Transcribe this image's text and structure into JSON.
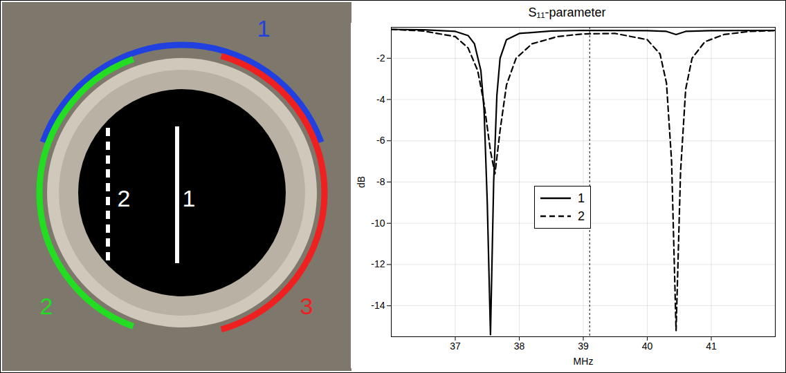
{
  "chart_data": {
    "type": "line",
    "title": "S₁₁-parameter",
    "x_label": "MHz",
    "y_label": "dB",
    "xlim": [
      36,
      42
    ],
    "xticks": [
      37,
      38,
      39,
      40,
      41
    ],
    "ylim": [
      -15.5,
      -0.5
    ],
    "yticks": [
      -2,
      -4,
      -6,
      -8,
      -10,
      -12,
      -14
    ],
    "grid": true,
    "legend": "center",
    "reference_line": 39.1,
    "series": [
      {
        "name": "1",
        "color": "#000000",
        "line_style": "solid",
        "x": [
          36.0,
          36.5,
          37.0,
          37.2,
          37.3,
          37.4,
          37.45,
          37.5,
          37.55,
          37.6,
          37.65,
          37.7,
          37.8,
          38.0,
          38.5,
          39.0,
          40.0,
          40.3,
          40.45,
          40.6,
          41.0,
          42.0
        ],
        "values": [
          -0.6,
          -0.62,
          -0.7,
          -0.9,
          -1.3,
          -2.6,
          -4.5,
          -9.0,
          -15.4,
          -8.0,
          -3.8,
          -2.0,
          -1.1,
          -0.8,
          -0.68,
          -0.65,
          -0.66,
          -0.7,
          -0.85,
          -0.7,
          -0.66,
          -0.65
        ]
      },
      {
        "name": "2",
        "color": "#000000",
        "line_style": "dashed",
        "x": [
          36.0,
          36.5,
          37.0,
          37.2,
          37.35,
          37.45,
          37.55,
          37.62,
          37.7,
          37.8,
          37.95,
          38.2,
          38.6,
          39.0,
          39.5,
          40.0,
          40.2,
          40.3,
          40.38,
          40.45,
          40.52,
          40.6,
          40.7,
          40.9,
          41.2,
          41.6,
          42.0
        ],
        "values": [
          -0.6,
          -0.68,
          -0.95,
          -1.5,
          -2.6,
          -4.2,
          -6.5,
          -7.6,
          -5.5,
          -3.3,
          -2.0,
          -1.3,
          -0.95,
          -0.82,
          -0.8,
          -1.1,
          -1.8,
          -3.2,
          -7.0,
          -15.2,
          -7.5,
          -3.5,
          -2.0,
          -1.2,
          -0.85,
          -0.7,
          -0.66
        ]
      }
    ]
  },
  "diagram": {
    "arcs": [
      {
        "label": "1",
        "color": "#2040e0"
      },
      {
        "label": "2",
        "color": "#22dd22"
      },
      {
        "label": "3",
        "color": "#ee2020"
      }
    ],
    "lines": [
      {
        "label": "1",
        "line_style": "solid"
      },
      {
        "label": "2",
        "line_style": "dashed"
      }
    ]
  }
}
